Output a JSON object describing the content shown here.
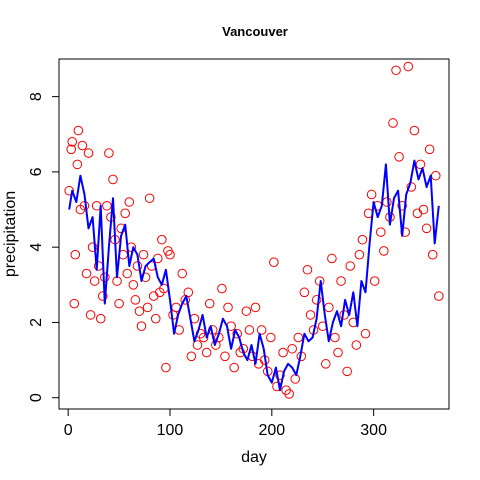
{
  "chart_data": {
    "type": "scatter",
    "title": "Vancouver",
    "xlabel": "day",
    "ylabel": "precipitation",
    "xlim": [
      -9,
      374
    ],
    "ylim": [
      -0.3,
      9.0
    ],
    "xticks": [
      0,
      100,
      200,
      300
    ],
    "yticks": [
      0,
      2,
      4,
      6,
      8
    ],
    "grid": false,
    "legend": "none",
    "colors": {
      "points": "#ff0000",
      "smooth": "#0000ff"
    },
    "series": [
      {
        "type": "scatter",
        "x": [
          1,
          3,
          4,
          6,
          7,
          9,
          10,
          12,
          14,
          16,
          18,
          20,
          22,
          24,
          26,
          28,
          30,
          32,
          34,
          36,
          38,
          40,
          42,
          44,
          46,
          48,
          50,
          52,
          54,
          56,
          58,
          60,
          62,
          64,
          66,
          68,
          70,
          72,
          74,
          76,
          78,
          80,
          82,
          84,
          86,
          88,
          90,
          92,
          94,
          96,
          98,
          100,
          103,
          106,
          109,
          112,
          115,
          118,
          121,
          124,
          127,
          130,
          133,
          136,
          139,
          142,
          145,
          148,
          151,
          154,
          157,
          160,
          163,
          166,
          169,
          172,
          175,
          178,
          181,
          184,
          187,
          190,
          193,
          196,
          199,
          202,
          205,
          208,
          211,
          214,
          217,
          220,
          223,
          226,
          229,
          232,
          235,
          238,
          241,
          244,
          247,
          250,
          253,
          256,
          259,
          262,
          265,
          268,
          271,
          274,
          277,
          280,
          283,
          286,
          289,
          292,
          295,
          298,
          301,
          304,
          307,
          310,
          313,
          316,
          319,
          322,
          325,
          328,
          331,
          334,
          337,
          340,
          343,
          346,
          349,
          352,
          355,
          358,
          361,
          364
        ],
        "y": [
          5.5,
          6.6,
          6.8,
          2.5,
          3.8,
          6.2,
          7.1,
          5.0,
          6.7,
          5.1,
          3.3,
          6.5,
          2.2,
          4.0,
          3.1,
          5.1,
          3.5,
          2.1,
          2.7,
          3.2,
          5.1,
          6.5,
          4.8,
          5.8,
          4.2,
          3.1,
          2.5,
          4.5,
          3.8,
          4.9,
          3.3,
          5.2,
          4.0,
          3.0,
          2.6,
          3.5,
          2.3,
          1.9,
          3.8,
          3.2,
          2.4,
          5.3,
          3.5,
          2.7,
          2.1,
          3.7,
          2.8,
          4.2,
          2.9,
          0.8,
          3.9,
          3.8,
          2.2,
          2.4,
          1.8,
          3.3,
          2.6,
          2.8,
          1.1,
          2.1,
          1.4,
          1.7,
          1.6,
          1.2,
          2.5,
          1.8,
          1.4,
          1.6,
          2.9,
          1.1,
          2.4,
          1.9,
          0.8,
          1.7,
          1.2,
          1.3,
          2.3,
          1.8,
          1.1,
          2.4,
          0.9,
          1.8,
          1.0,
          0.7,
          1.6,
          3.6,
          0.3,
          0.6,
          1.2,
          0.2,
          0.1,
          1.3,
          0.5,
          1.6,
          1.1,
          2.8,
          3.4,
          2.2,
          1.8,
          2.6,
          3.1,
          1.9,
          0.9,
          2.4,
          3.7,
          1.6,
          1.2,
          3.1,
          2.2,
          0.7,
          3.5,
          2.0,
          1.4,
          3.8,
          4.2,
          1.7,
          4.9,
          5.4,
          3.1,
          5.1,
          4.4,
          3.9,
          5.2,
          4.8,
          7.3,
          8.7,
          6.4,
          5.1,
          4.4,
          8.8,
          5.6,
          7.1,
          4.9,
          6.2,
          5.0,
          4.5,
          6.6,
          3.8,
          5.9,
          2.7
        ]
      },
      {
        "type": "line",
        "x": [
          1,
          4,
          8,
          12,
          16,
          20,
          24,
          28,
          32,
          36,
          40,
          44,
          48,
          52,
          56,
          60,
          64,
          68,
          72,
          76,
          80,
          84,
          88,
          92,
          96,
          100,
          104,
          108,
          112,
          116,
          120,
          124,
          128,
          132,
          136,
          140,
          144,
          148,
          152,
          156,
          160,
          164,
          168,
          172,
          176,
          180,
          184,
          188,
          192,
          196,
          200,
          204,
          208,
          212,
          216,
          220,
          224,
          228,
          232,
          236,
          240,
          244,
          248,
          252,
          256,
          260,
          264,
          268,
          272,
          276,
          280,
          284,
          288,
          292,
          296,
          300,
          304,
          308,
          312,
          316,
          320,
          324,
          328,
          332,
          336,
          340,
          344,
          348,
          352,
          356,
          360,
          364
        ],
        "y": [
          5.0,
          5.5,
          5.2,
          5.9,
          5.4,
          4.5,
          4.8,
          3.4,
          5.1,
          2.5,
          4.0,
          5.3,
          3.2,
          4.3,
          4.6,
          3.5,
          4.0,
          3.8,
          3.1,
          3.5,
          3.6,
          3.7,
          3.2,
          3.0,
          3.4,
          2.6,
          1.7,
          2.2,
          2.5,
          2.7,
          2.1,
          1.5,
          1.8,
          2.2,
          1.6,
          1.9,
          1.4,
          1.7,
          2.1,
          1.9,
          1.3,
          1.8,
          1.6,
          1.2,
          1.0,
          1.4,
          0.9,
          1.7,
          1.3,
          0.6,
          0.4,
          0.8,
          0.2,
          0.7,
          0.9,
          0.8,
          0.6,
          1.1,
          1.7,
          1.5,
          1.6,
          2.1,
          3.1,
          2.2,
          1.5,
          2.0,
          2.3,
          1.9,
          2.6,
          2.2,
          2.8,
          1.9,
          3.1,
          2.8,
          4.1,
          5.2,
          4.8,
          5.1,
          6.2,
          4.6,
          5.3,
          5.5,
          4.3,
          5.4,
          5.7,
          6.3,
          5.8,
          6.1,
          5.6,
          5.9,
          4.1,
          5.1
        ]
      }
    ]
  }
}
